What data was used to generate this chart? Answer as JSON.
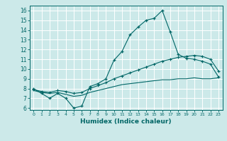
{
  "xlabel": "Humidex (Indice chaleur)",
  "bg_color": "#cce9e9",
  "grid_color": "#ffffff",
  "line_color": "#006666",
  "xlim": [
    -0.5,
    23.5
  ],
  "ylim": [
    5.8,
    16.5
  ],
  "xticks": [
    0,
    1,
    2,
    3,
    4,
    5,
    6,
    7,
    8,
    9,
    10,
    11,
    12,
    13,
    14,
    15,
    16,
    17,
    18,
    19,
    20,
    21,
    22,
    23
  ],
  "yticks": [
    6,
    7,
    8,
    9,
    10,
    11,
    12,
    13,
    14,
    15,
    16
  ],
  "main_x": [
    0,
    1,
    2,
    3,
    4,
    5,
    6,
    7,
    8,
    9,
    10,
    11,
    12,
    13,
    14,
    15,
    16,
    17,
    18,
    19,
    20,
    21,
    22,
    23
  ],
  "main_y": [
    8.0,
    7.5,
    7.0,
    7.5,
    7.0,
    6.0,
    6.2,
    8.2,
    8.5,
    9.0,
    10.9,
    11.8,
    13.5,
    14.3,
    15.0,
    15.2,
    16.0,
    13.8,
    11.5,
    11.1,
    11.0,
    10.8,
    10.5,
    9.2
  ],
  "line2_x": [
    0,
    1,
    2,
    3,
    4,
    5,
    6,
    7,
    8,
    9,
    10,
    11,
    12,
    13,
    14,
    15,
    16,
    17,
    18,
    19,
    20,
    21,
    22,
    23
  ],
  "line2_y": [
    7.9,
    7.7,
    7.6,
    7.8,
    7.7,
    7.5,
    7.6,
    8.0,
    8.3,
    8.6,
    9.0,
    9.3,
    9.6,
    9.9,
    10.2,
    10.5,
    10.8,
    11.0,
    11.2,
    11.3,
    11.4,
    11.3,
    11.0,
    9.8
  ],
  "line3_x": [
    0,
    1,
    2,
    3,
    4,
    5,
    6,
    7,
    8,
    9,
    10,
    11,
    12,
    13,
    14,
    15,
    16,
    17,
    18,
    19,
    20,
    21,
    22,
    23
  ],
  "line3_y": [
    7.8,
    7.6,
    7.5,
    7.6,
    7.4,
    7.2,
    7.3,
    7.6,
    7.8,
    8.0,
    8.2,
    8.4,
    8.5,
    8.6,
    8.7,
    8.8,
    8.9,
    8.9,
    9.0,
    9.0,
    9.1,
    9.0,
    9.0,
    9.1
  ]
}
